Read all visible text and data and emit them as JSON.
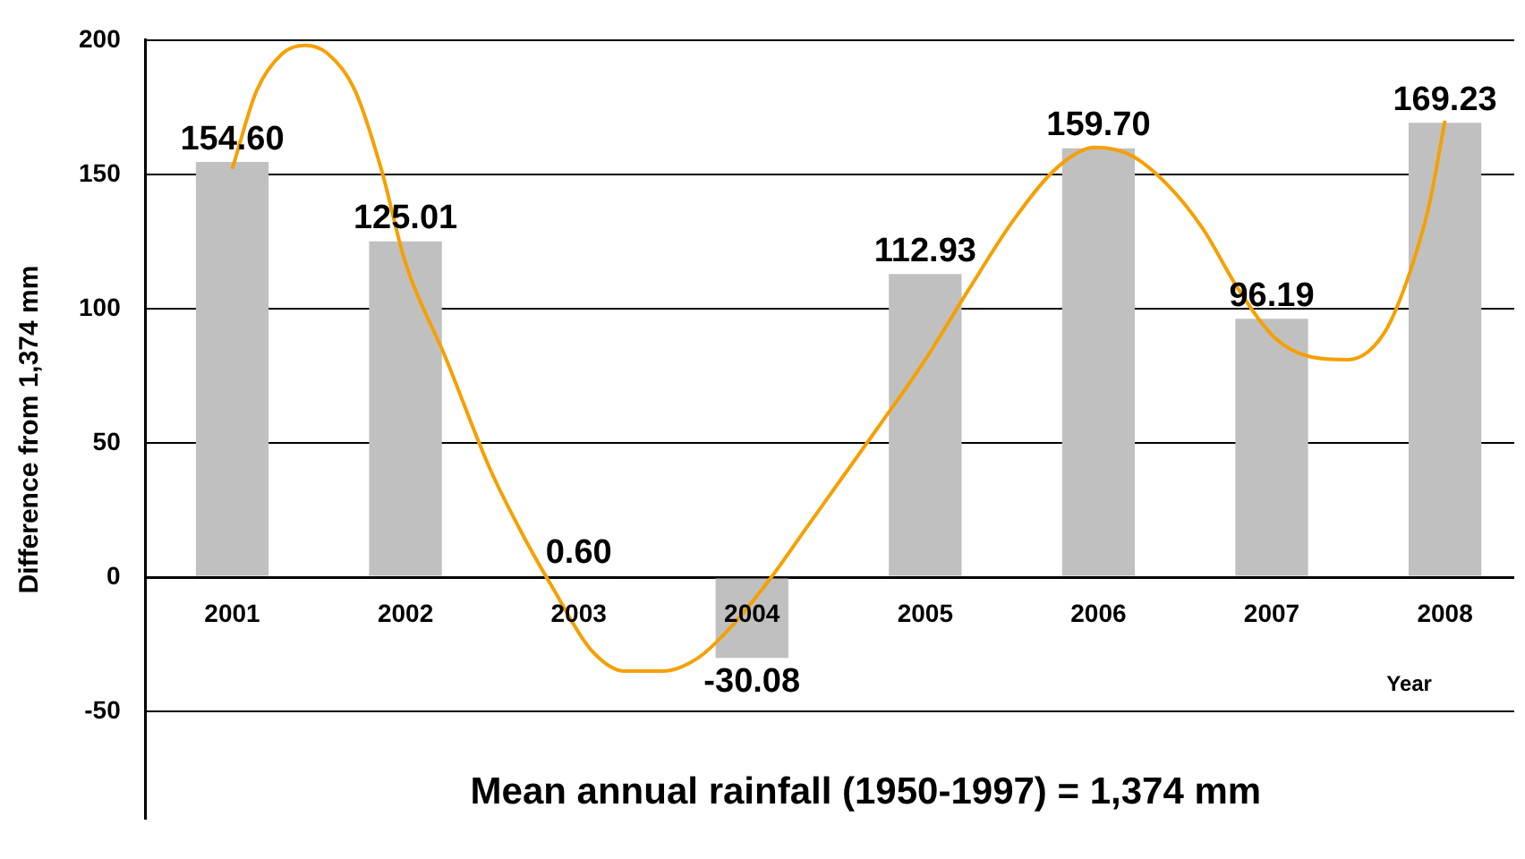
{
  "chart_data": {
    "type": "bar",
    "ylabel": "Difference from 1,374 mm",
    "xlabel": "Year",
    "x": [
      2001,
      2002,
      2003,
      2004,
      2005,
      2006,
      2007,
      2008
    ],
    "xlim": [
      2000.5,
      2008.4
    ],
    "xticks": [
      2001,
      2002,
      2003,
      2004,
      2005,
      2006,
      2007,
      2008
    ],
    "ylim": [
      -90,
      200
    ],
    "yticks": [
      -50,
      0,
      50,
      100,
      150,
      200
    ],
    "grid": "y",
    "legend": false,
    "series": [
      {
        "color": "#c0c0c0",
        "values": [
          154.6,
          125.01,
          0.6,
          -30.08,
          112.93,
          159.7,
          96.19,
          169.23
        ],
        "value_labels": [
          "154.60",
          "125.01",
          "0.60",
          "-30.08",
          "112.93",
          "159.70",
          "96.19",
          "169.23"
        ]
      },
      {
        "type": "line",
        "color": "#f5a000",
        "marker": "none",
        "x": [
          2001.0,
          2001.14,
          2001.29,
          2001.42,
          2001.55,
          2001.71,
          2001.86,
          2002.0,
          2002.23,
          2002.49,
          2002.7,
          2002.85,
          2003.07,
          2003.27,
          2003.48,
          2003.69,
          2003.9,
          2004.1,
          2004.31,
          2004.52,
          2004.73,
          2004.99,
          2005.25,
          2005.51,
          2005.77,
          2005.98,
          2006.19,
          2006.4,
          2006.6,
          2006.81,
          2007.02,
          2007.23,
          2007.44,
          2007.65,
          2007.8,
          2007.91,
          2008.0
        ],
        "values": [
          152,
          181,
          195,
          198,
          195,
          181,
          152,
          117,
          82,
          40,
          13,
          -4,
          -27,
          -35,
          -35,
          -30,
          -17,
          -1,
          18,
          37,
          56,
          80,
          107,
          133,
          153,
          160,
          157,
          146,
          130,
          107,
          89,
          82,
          81,
          91,
          114,
          139,
          170
        ]
      }
    ],
    "annotations": [
      "Mean annual rainfall (1950-1997) = 1,374 mm"
    ]
  }
}
